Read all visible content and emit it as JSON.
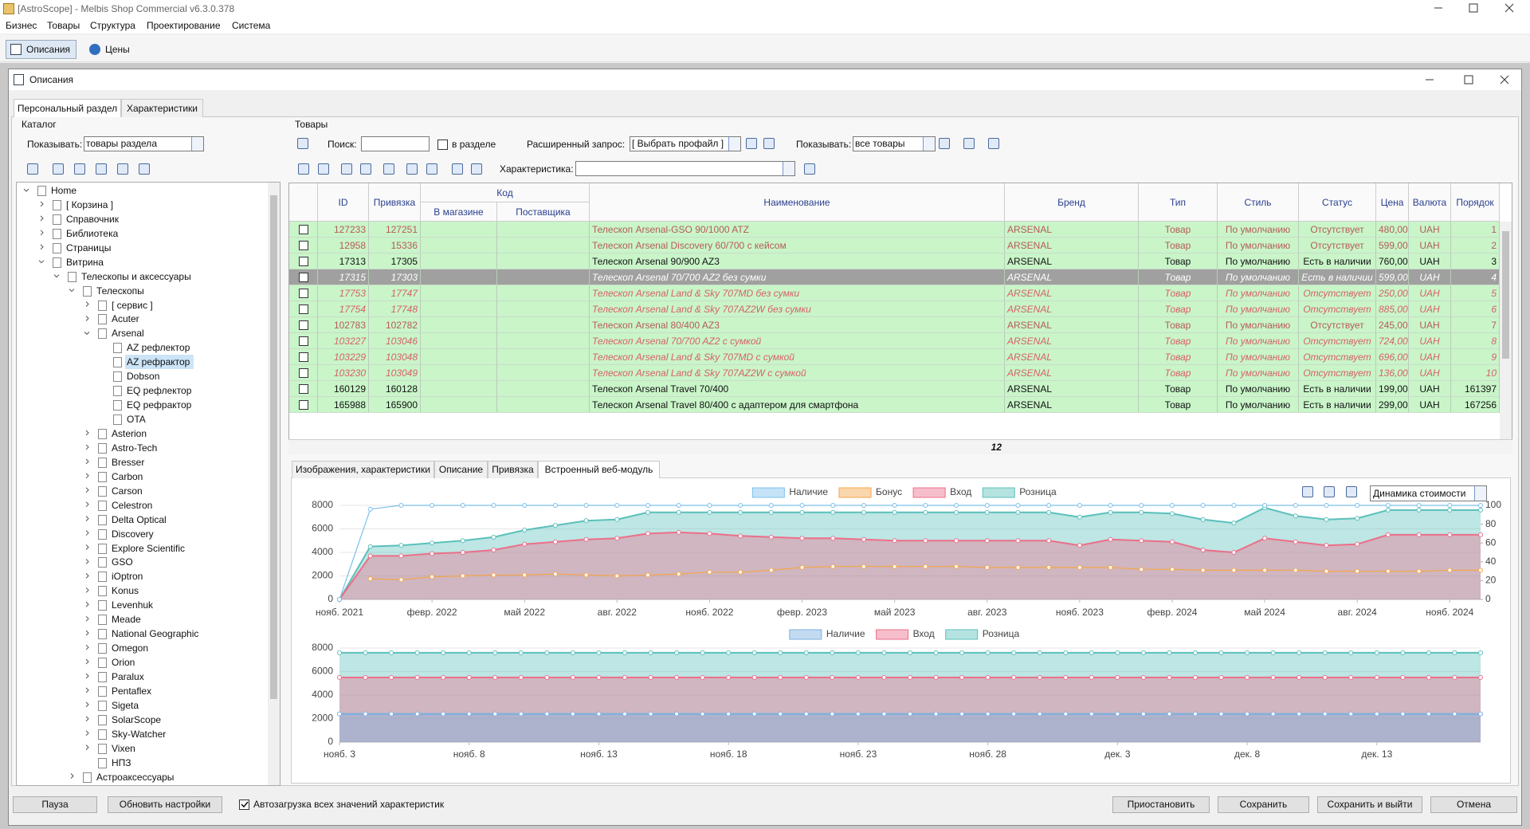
{
  "window": {
    "title": "[AstroScope] - Melbis Shop Commercial v6.3.0.378"
  },
  "menu": [
    "Бизнес",
    "Товары",
    "Структура",
    "Проектирование",
    "Система"
  ],
  "toolbar_tabs": [
    "Описания",
    "Цены"
  ],
  "dialog": {
    "title": "Описания",
    "tabs": [
      "Персональный раздел",
      "Характеристики"
    ]
  },
  "catalog": {
    "title": "Каталог",
    "show_label": "Показывать:",
    "show_value": "товары раздела",
    "tree": [
      "Home",
      "[ Корзина ]",
      "Справочник",
      "Библиотека",
      "Страницы",
      "Витрина",
      "Телескопы и аксессуары",
      "Телескопы",
      "[ сервис ]",
      "Acuter",
      "Arsenal",
      "AZ рефлектор",
      "AZ рефрактор",
      "Dobson",
      "EQ рефлектор",
      "EQ рефрактор",
      "OTA",
      "Asterion",
      "Astro-Tech",
      "Bresser",
      "Carbon",
      "Carson",
      "Celestron",
      "Delta Optical",
      "Discovery",
      "Explore Scientific",
      "GSO",
      "iOptron",
      "Konus",
      "Levenhuk",
      "Meade",
      "National Geographic",
      "Omegon",
      "Orion",
      "Paralux",
      "Pentaflex",
      "Sigeta",
      "SolarScope",
      "Sky-Watcher",
      "Vixen",
      "НПЗ",
      "Астроаксессуары"
    ]
  },
  "products": {
    "title": "Товары",
    "search_label": "Поиск:",
    "in_section": "в разделе",
    "advanced_label": "Расширенный запрос:",
    "profile": "[ Выбрать профайл ]",
    "show_label": "Показывать:",
    "show_value": "все товары",
    "feature_label": "Характеристика:"
  },
  "table": {
    "columns": [
      "ID",
      "Привязка",
      "Наименование",
      "Бренд",
      "Тип",
      "Стиль",
      "Статус",
      "Цена",
      "Валюта",
      "Порядок"
    ],
    "code_group": "Код",
    "code_columns": [
      "В магазине",
      "Поставщика"
    ],
    "rows": [
      [
        "127233",
        "127251",
        "Телескоп Arsenal-GSO 90/1000 ATZ",
        "ARSENAL",
        "Товар",
        "По умолчанию",
        "Отсутствует",
        "480,00",
        "UAH",
        "1"
      ],
      [
        "12958",
        "15336",
        "Телескоп Arsenal Discovery 60/700 с кейсом",
        "ARSENAL",
        "Товар",
        "По умолчанию",
        "Отсутствует",
        "599,00",
        "UAH",
        "2"
      ],
      [
        "17313",
        "17305",
        "Телескоп Arsenal 90/900 AZ3",
        "ARSENAL",
        "Товар",
        "По умолчанию",
        "Есть в наличии",
        "760,00",
        "UAH",
        "3"
      ],
      [
        "17315",
        "17303",
        "Телескоп Arsenal 70/700 AZ2 без сумки",
        "ARSENAL",
        "Товар",
        "По умолчанию",
        "Есть в наличии",
        "599,00",
        "UAH",
        "4"
      ],
      [
        "17753",
        "17747",
        "Телескоп Arsenal Land & Sky 707MD без сумки",
        "ARSENAL",
        "Товар",
        "По умолчанию",
        "Отсутствует",
        "250,00",
        "UAH",
        "5"
      ],
      [
        "17754",
        "17748",
        "Телескоп Arsenal Land & Sky 707AZ2W без сумки",
        "ARSENAL",
        "Товар",
        "По умолчанию",
        "Отсутствует",
        "885,00",
        "UAH",
        "6"
      ],
      [
        "102783",
        "102782",
        "Телескоп Arsenal 80/400 AZ3",
        "ARSENAL",
        "Товар",
        "По умолчанию",
        "Отсутствует",
        "245,00",
        "UAH",
        "7"
      ],
      [
        "103227",
        "103046",
        "Телескоп Arsenal 70/700 AZ2 с сумкой",
        "ARSENAL",
        "Товар",
        "По умолчанию",
        "Отсутствует",
        "724,00",
        "UAH",
        "8"
      ],
      [
        "103229",
        "103048",
        "Телескоп Arsenal Land & Sky 707MD с сумкой",
        "ARSENAL",
        "Товар",
        "По умолчанию",
        "Отсутствует",
        "696,00",
        "UAH",
        "9"
      ],
      [
        "103230",
        "103049",
        "Телескоп Arsenal Land & Sky 707AZ2W с сумкой",
        "ARSENAL",
        "Товар",
        "По умолчанию",
        "Отсутствует",
        "136,00",
        "UAH",
        "10"
      ],
      [
        "160129",
        "160128",
        "Телескоп Arsenal Travel 70/400",
        "ARSENAL",
        "Товар",
        "По умолчанию",
        "Есть в наличии",
        "199,00",
        "UAH",
        "161397"
      ],
      [
        "165988",
        "165900",
        "Телескоп Arsenal Travel 80/400 с адаптером для смартфона",
        "ARSENAL",
        "Товар",
        "По умолчанию",
        "Есть в наличии",
        "299,00",
        "UAH",
        "167256"
      ]
    ],
    "total": 12
  },
  "detail_tabs": [
    "Изображения, характеристики",
    "Описание",
    "Привязка",
    "Встроенный веб-модуль"
  ],
  "chart_view": "Динамика стоимости",
  "chart_data": [
    {
      "type": "area",
      "categories": [
        "нояб. 2021",
        null,
        null,
        "февр. 2022",
        null,
        null,
        "май 2022",
        null,
        null,
        "авг. 2022",
        null,
        null,
        "нояб. 2022",
        null,
        null,
        "февр. 2023",
        null,
        null,
        "май 2023",
        null,
        null,
        "авг. 2023",
        null,
        null,
        "нояб. 2023",
        null,
        null,
        "февр. 2024",
        null,
        null,
        "май 2024",
        null,
        null,
        "авг. 2024",
        null,
        null,
        "нояб. 2024",
        null
      ],
      "series": [
        {
          "name": "Наличие",
          "color": "#7cc0ec",
          "axis": "y2",
          "values": [
            0,
            96,
            100,
            100,
            100,
            100,
            100,
            100,
            100,
            100,
            100,
            100,
            100,
            100,
            100,
            100,
            100,
            100,
            100,
            100,
            100,
            100,
            100,
            100,
            100,
            100,
            100,
            100,
            100,
            100,
            100,
            100,
            100,
            100,
            100,
            100,
            100,
            100
          ]
        },
        {
          "name": "Бонус",
          "color": "#f5a54a",
          "axis": "y2",
          "values": [
            null,
            22,
            21,
            24,
            25,
            26,
            26,
            27,
            26,
            25,
            26,
            27,
            29,
            29,
            31,
            34,
            35,
            35,
            35,
            35,
            35,
            34,
            34,
            34,
            34,
            34,
            32,
            32,
            31,
            31,
            31,
            31,
            30,
            30,
            30,
            30,
            31,
            31
          ]
        },
        {
          "name": "Вход",
          "color": "#ec6f8a",
          "values": [
            0,
            3700,
            3700,
            3900,
            4000,
            4200,
            4700,
            4900,
            5100,
            5200,
            5600,
            5700,
            5600,
            5400,
            5300,
            5200,
            5200,
            5100,
            5000,
            5000,
            5000,
            5000,
            5000,
            5000,
            4600,
            5100,
            5000,
            4900,
            4200,
            4000,
            5200,
            4900,
            4600,
            4700,
            5500,
            5500,
            5500,
            5500
          ]
        },
        {
          "name": "Розница",
          "color": "#5bc0bb",
          "values": [
            0,
            4500,
            4600,
            4800,
            5000,
            5300,
            5900,
            6300,
            6700,
            6800,
            7400,
            7400,
            7400,
            7400,
            7400,
            7400,
            7400,
            7400,
            7400,
            7400,
            7400,
            7400,
            7400,
            7400,
            7000,
            7400,
            7400,
            7300,
            6800,
            6500,
            7800,
            7100,
            6800,
            6900,
            7600,
            7600,
            7600,
            7600
          ]
        }
      ],
      "ylim": [
        0,
        8000
      ],
      "yticks": [
        0,
        2000,
        4000,
        6000,
        8000
      ],
      "y2lim": [
        0,
        100
      ],
      "y2ticks": [
        0,
        20,
        40,
        60,
        80,
        100
      ],
      "grid": true,
      "legend": "top"
    },
    {
      "type": "area",
      "categories": [
        "нояб. 3",
        null,
        null,
        null,
        null,
        "нояб. 8",
        null,
        null,
        null,
        null,
        "нояб. 13",
        null,
        null,
        null,
        null,
        "нояб. 18",
        null,
        null,
        null,
        null,
        "нояб. 23",
        null,
        null,
        null,
        null,
        "нояб. 28",
        null,
        null,
        null,
        null,
        "дек. 3",
        null,
        null,
        null,
        null,
        "дек. 8",
        null,
        null,
        null,
        null,
        "дек. 13",
        null,
        null,
        null,
        null
      ],
      "series": [
        {
          "name": "Наличие",
          "color": "#7ab0e0",
          "values": [
            2400,
            2400,
            2400,
            2400,
            2400,
            2400,
            2400,
            2400,
            2400,
            2400,
            2400,
            2400,
            2400,
            2400,
            2400,
            2400,
            2400,
            2400,
            2400,
            2400,
            2400,
            2400,
            2400,
            2400,
            2400,
            2400,
            2400,
            2400,
            2400,
            2400,
            2400,
            2400,
            2400,
            2400,
            2400,
            2400,
            2400,
            2400,
            2400,
            2400,
            2400,
            2400,
            2400,
            2400,
            2400
          ]
        },
        {
          "name": "Вход",
          "color": "#ec6f8a",
          "values": [
            5500,
            5500,
            5500,
            5500,
            5500,
            5500,
            5500,
            5500,
            5500,
            5500,
            5500,
            5500,
            5500,
            5500,
            5500,
            5500,
            5500,
            5500,
            5500,
            5500,
            5500,
            5500,
            5500,
            5500,
            5500,
            5500,
            5500,
            5500,
            5500,
            5500,
            5500,
            5500,
            5500,
            5500,
            5500,
            5500,
            5500,
            5500,
            5500,
            5500,
            5500,
            5500,
            5500,
            5500,
            5500
          ]
        },
        {
          "name": "Розница",
          "color": "#5bc0bb",
          "values": [
            7600,
            7600,
            7600,
            7600,
            7600,
            7600,
            7600,
            7600,
            7600,
            7600,
            7600,
            7600,
            7600,
            7600,
            7600,
            7600,
            7600,
            7600,
            7600,
            7600,
            7600,
            7600,
            7600,
            7600,
            7600,
            7600,
            7600,
            7600,
            7600,
            7600,
            7600,
            7600,
            7600,
            7600,
            7600,
            7600,
            7600,
            7600,
            7600,
            7600,
            7600,
            7600,
            7600,
            7600,
            7600
          ]
        }
      ],
      "ylim": [
        0,
        8000
      ],
      "yticks": [
        0,
        2000,
        4000,
        6000,
        8000
      ],
      "grid": true,
      "legend": "top"
    }
  ],
  "buttons": {
    "pause": "Пауза",
    "refresh": "Обновить настройки",
    "autoload": "Автозагрузка всех значений характеристик",
    "suspend": "Приостановить",
    "save": "Сохранить",
    "save_exit": "Сохранить и выйти",
    "cancel": "Отмена"
  }
}
